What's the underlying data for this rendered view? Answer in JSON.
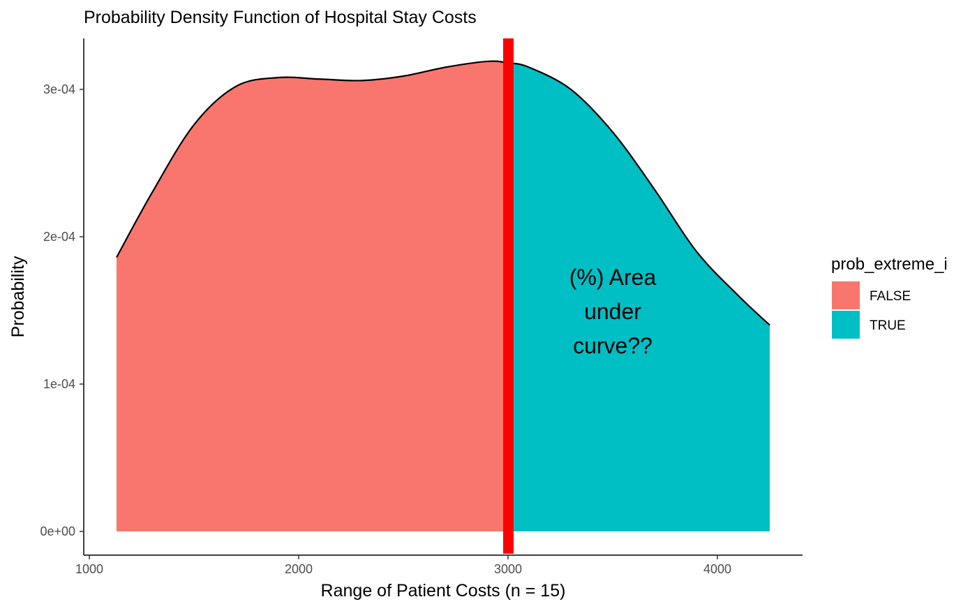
{
  "chart_data": {
    "type": "area",
    "title": "Probability Density Function of Hospital Stay Costs",
    "xlabel": "Range of Patient Costs (n = 15)",
    "ylabel": "Probability",
    "xlim": [
      990,
      4400
    ],
    "ylim": [
      -1.65e-05,
      0.000335
    ],
    "x_ticks": [
      1000,
      2000,
      3000,
      4000
    ],
    "x_tick_labels": [
      "1000",
      "2000",
      "3000",
      "4000"
    ],
    "y_ticks": [
      0,
      0.0001,
      0.0002,
      0.0003
    ],
    "y_tick_labels": [
      "0e+00",
      "1e-04",
      "2e-04",
      "3e-04"
    ],
    "grid": false,
    "legend": {
      "title": "prob_extreme_i",
      "position": "right",
      "entries": [
        {
          "label": "FALSE",
          "color": "#F8766D"
        },
        {
          "label": "TRUE",
          "color": "#00BFC4"
        }
      ]
    },
    "threshold": {
      "x": 3000,
      "color": "#FF0000"
    },
    "annotation": {
      "x": 3500,
      "lines": [
        "(%) Area",
        "under",
        "curve??"
      ]
    },
    "series": [
      {
        "name": "FALSE",
        "color": "#F8766D",
        "points": [
          [
            1130,
            0.000186
          ],
          [
            1300,
            0.00023
          ],
          [
            1500,
            0.000276
          ],
          [
            1700,
            0.000302
          ],
          [
            1900,
            0.000308
          ],
          [
            2100,
            0.000307
          ],
          [
            2300,
            0.000306
          ],
          [
            2500,
            0.000309
          ],
          [
            2700,
            0.000315
          ],
          [
            2900,
            0.000319
          ],
          [
            3000,
            0.000318
          ]
        ]
      },
      {
        "name": "TRUE",
        "color": "#00BFC4",
        "points": [
          [
            3000,
            0.000318
          ],
          [
            3100,
            0.000315
          ],
          [
            3300,
            0.0003
          ],
          [
            3500,
            0.000271
          ],
          [
            3700,
            0.000232
          ],
          [
            3900,
            0.00019
          ],
          [
            4100,
            0.00016
          ],
          [
            4250,
            0.00014
          ]
        ]
      }
    ]
  }
}
